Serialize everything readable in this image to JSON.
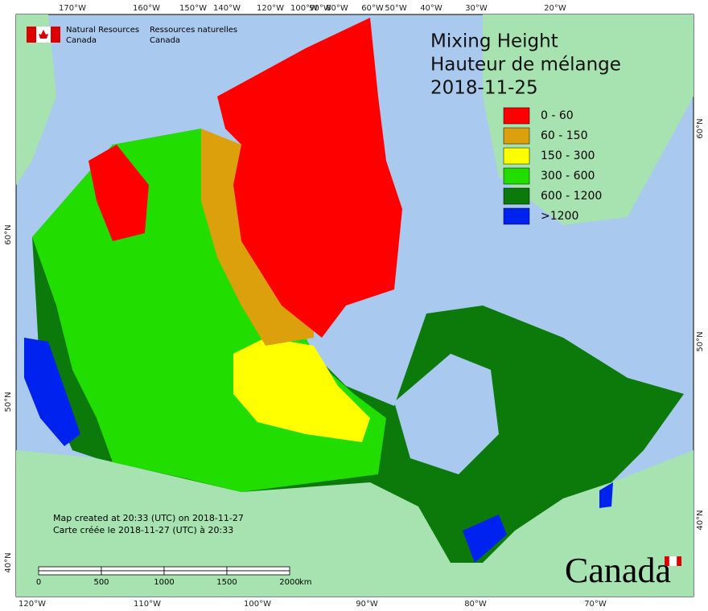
{
  "header": {
    "agency_en": [
      "Natural Resources",
      "Canada"
    ],
    "agency_fr": [
      "Ressources naturelles",
      "Canada"
    ]
  },
  "title": [
    "Mixing Height",
    "Hauteur de mélange",
    "2018-11-25"
  ],
  "legend": [
    {
      "label": "0 - 60",
      "color": "#ff0000"
    },
    {
      "label": "60 - 150",
      "color": "#dba00c"
    },
    {
      "label": "150 - 300",
      "color": "#ffff00"
    },
    {
      "label": "300 - 600",
      "color": "#22dd00"
    },
    {
      "label": "600 - 1200",
      "color": "#0b7a0b"
    },
    {
      "label": ">1200",
      "color": "#0022ee"
    }
  ],
  "graticule": {
    "top": [
      "170°W",
      "160°W",
      "150°W",
      "140°W",
      "120°W",
      "100°W",
      "90°W",
      "80°W",
      "60°W",
      "50°W",
      "40°W",
      "30°W",
      "20°W"
    ],
    "bottom": [
      "120°W",
      "110°W",
      "100°W",
      "90°W",
      "80°W",
      "70°W"
    ],
    "left": [
      "60°N",
      "50°N",
      "40°N"
    ],
    "right": [
      "60°N",
      "50°N",
      "40°N"
    ]
  },
  "credit": [
    "Map created at 20:33 (UTC) on 2018-11-27",
    "Carte créée le 2018-11-27 (UTC) à 20:33"
  ],
  "scale": {
    "labels": [
      "0",
      "500",
      "1000",
      "1500",
      "2000"
    ],
    "unit": "km"
  },
  "wordmark": "Canada"
}
